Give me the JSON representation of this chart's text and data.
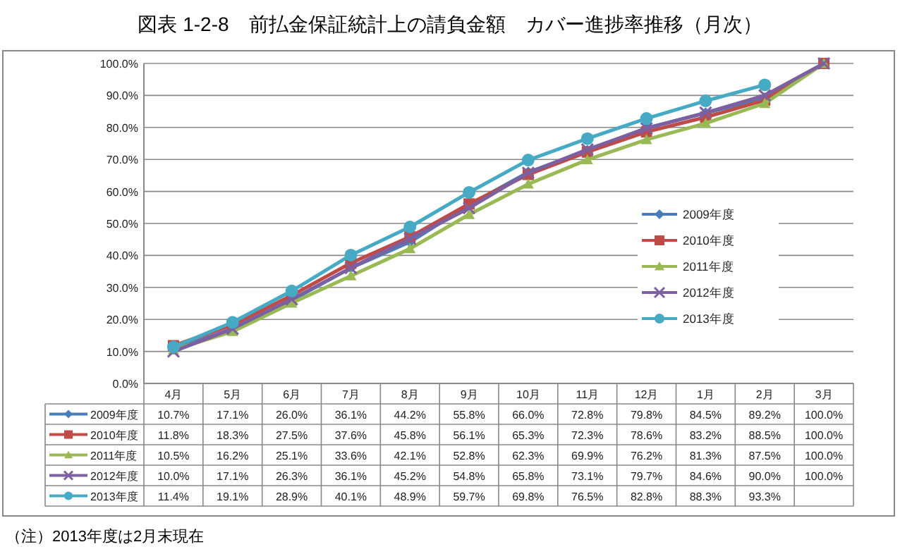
{
  "chart_data": {
    "type": "line",
    "title": "図表 1-2-8　前払金保証統計上の請負金額　カバー進捗率推移（月次）",
    "categories": [
      "4月",
      "5月",
      "6月",
      "7月",
      "8月",
      "9月",
      "10月",
      "11月",
      "12月",
      "1月",
      "2月",
      "3月"
    ],
    "series": [
      {
        "name": "2009年度",
        "color": "#4a7ebb",
        "marker": "diamond",
        "values": [
          10.7,
          17.1,
          26.0,
          36.1,
          44.2,
          55.8,
          66.0,
          72.8,
          79.8,
          84.5,
          89.2,
          100.0
        ],
        "value_labels": [
          "10.7%",
          "17.1%",
          "26.0%",
          "36.1%",
          "44.2%",
          "55.8%",
          "66.0%",
          "72.8%",
          "79.8%",
          "84.5%",
          "89.2%",
          "100.0%"
        ]
      },
      {
        "name": "2010年度",
        "color": "#be4b48",
        "marker": "square",
        "values": [
          11.8,
          18.3,
          27.5,
          37.6,
          45.8,
          56.1,
          65.3,
          72.3,
          78.6,
          83.2,
          88.5,
          100.0
        ],
        "value_labels": [
          "11.8%",
          "18.3%",
          "27.5%",
          "37.6%",
          "45.8%",
          "56.1%",
          "65.3%",
          "72.3%",
          "78.6%",
          "83.2%",
          "88.5%",
          "100.0%"
        ]
      },
      {
        "name": "2011年度",
        "color": "#98b954",
        "marker": "triangle",
        "values": [
          10.5,
          16.2,
          25.1,
          33.6,
          42.1,
          52.8,
          62.3,
          69.9,
          76.2,
          81.3,
          87.5,
          100.0
        ],
        "value_labels": [
          "10.5%",
          "16.2%",
          "25.1%",
          "33.6%",
          "42.1%",
          "52.8%",
          "62.3%",
          "69.9%",
          "76.2%",
          "81.3%",
          "87.5%",
          "100.0%"
        ]
      },
      {
        "name": "2012年度",
        "color": "#7d60a0",
        "marker": "cross",
        "values": [
          10.0,
          17.1,
          26.3,
          36.1,
          45.2,
          54.8,
          65.8,
          73.1,
          79.7,
          84.6,
          90.0,
          100.0
        ],
        "value_labels": [
          "10.0%",
          "17.1%",
          "26.3%",
          "36.1%",
          "45.2%",
          "54.8%",
          "65.8%",
          "73.1%",
          "79.7%",
          "84.6%",
          "90.0%",
          "100.0%"
        ]
      },
      {
        "name": "2013年度",
        "color": "#46aac5",
        "marker": "circle",
        "values": [
          11.4,
          19.1,
          28.9,
          40.1,
          48.9,
          59.7,
          69.8,
          76.5,
          82.8,
          88.3,
          93.3,
          null
        ],
        "value_labels": [
          "11.4%",
          "19.1%",
          "28.9%",
          "40.1%",
          "48.9%",
          "59.7%",
          "69.8%",
          "76.5%",
          "82.8%",
          "88.3%",
          "93.3%",
          null
        ]
      }
    ],
    "ylim": [
      0,
      100
    ],
    "yticks": [
      {
        "value": 0,
        "label": "0.0%"
      },
      {
        "value": 10,
        "label": "10.0%"
      },
      {
        "value": 20,
        "label": "20.0%"
      },
      {
        "value": 30,
        "label": "30.0%"
      },
      {
        "value": 40,
        "label": "40.0%"
      },
      {
        "value": 50,
        "label": "50.0%"
      },
      {
        "value": 60,
        "label": "60.0%"
      },
      {
        "value": 70,
        "label": "70.0%"
      },
      {
        "value": 80,
        "label": "80.0%"
      },
      {
        "value": 90,
        "label": "90.0%"
      },
      {
        "value": 100,
        "label": "100.0%"
      }
    ],
    "grid": "y",
    "legend": "right",
    "annotations": [
      "（注）2013年度は2月末現在"
    ]
  }
}
